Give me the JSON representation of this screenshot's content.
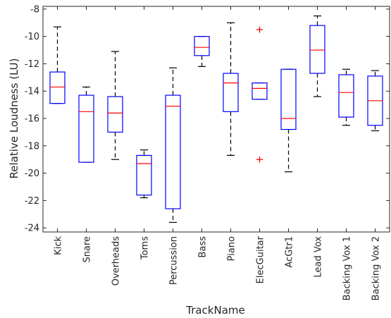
{
  "chart_data": {
    "type": "boxplot",
    "xlabel": "TrackName",
    "ylabel": "Relative Loudness (LU)",
    "ylim": [
      -24.3,
      -7.8
    ],
    "yticks": [
      -8,
      -10,
      -12,
      -14,
      -16,
      -18,
      -20,
      -22,
      -24
    ],
    "grid": false,
    "legend": "none",
    "colors": {
      "box": "#0000ff",
      "median": "#ff0000",
      "whisker": "#000000",
      "outlier": "#ff0000",
      "axis": "#262626"
    },
    "categories": [
      "Kick",
      "Snare",
      "Overheads",
      "Toms",
      "Percussion",
      "Bass",
      "Piano",
      "ElecGuitar",
      "AcGtr1",
      "Lead Vox",
      "Backing Vox 1",
      "Backing Vox 2"
    ],
    "boxes": [
      {
        "whisker_low": -14.9,
        "q1": -14.9,
        "median": -13.7,
        "q3": -12.6,
        "whisker_high": -9.3,
        "outliers": []
      },
      {
        "whisker_low": -19.2,
        "q1": -19.2,
        "median": -15.5,
        "q3": -14.3,
        "whisker_high": -13.7,
        "outliers": []
      },
      {
        "whisker_low": -19.0,
        "q1": -17.0,
        "median": -15.6,
        "q3": -14.4,
        "whisker_high": -11.1,
        "outliers": []
      },
      {
        "whisker_low": -21.8,
        "q1": -21.6,
        "median": -19.3,
        "q3": -18.7,
        "whisker_high": -18.3,
        "outliers": []
      },
      {
        "whisker_low": -23.6,
        "q1": -22.6,
        "median": -15.1,
        "q3": -14.3,
        "whisker_high": -12.3,
        "outliers": []
      },
      {
        "whisker_low": -12.2,
        "q1": -11.4,
        "median": -10.8,
        "q3": -10.0,
        "whisker_high": -10.0,
        "outliers": []
      },
      {
        "whisker_low": -18.7,
        "q1": -15.5,
        "median": -13.4,
        "q3": -12.7,
        "whisker_high": -9.0,
        "outliers": []
      },
      {
        "whisker_low": -14.6,
        "q1": -14.6,
        "median": -13.8,
        "q3": -13.4,
        "whisker_high": -13.4,
        "outliers": [
          -9.5,
          -19.0
        ]
      },
      {
        "whisker_low": -19.9,
        "q1": -16.8,
        "median": -16.0,
        "q3": -12.4,
        "whisker_high": -12.4,
        "outliers": []
      },
      {
        "whisker_low": -14.4,
        "q1": -12.7,
        "median": -11.0,
        "q3": -9.2,
        "whisker_high": -8.5,
        "outliers": []
      },
      {
        "whisker_low": -16.5,
        "q1": -15.9,
        "median": -14.1,
        "q3": -12.8,
        "whisker_high": -12.4,
        "outliers": []
      },
      {
        "whisker_low": -16.9,
        "q1": -16.5,
        "median": -14.7,
        "q3": -12.9,
        "whisker_high": -12.5,
        "outliers": []
      }
    ]
  }
}
